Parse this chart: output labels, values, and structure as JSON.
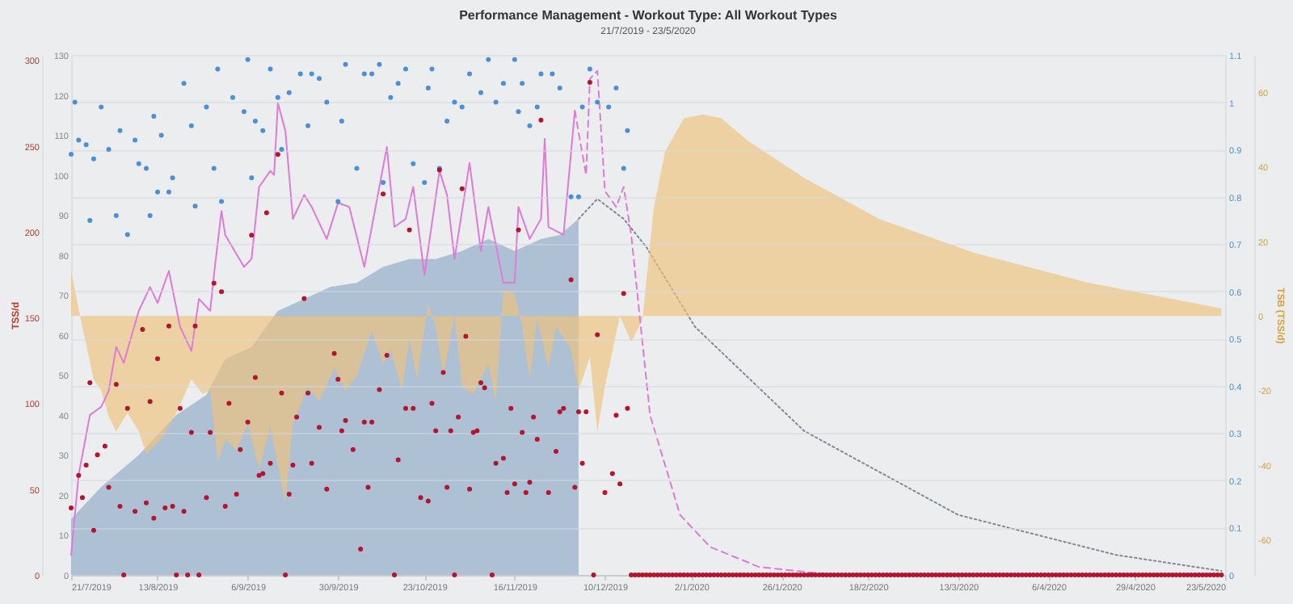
{
  "chart_data": [
    {
      "type": "line",
      "title": "Performance Management - Workout Type: All Workout Types",
      "subtitle": "21/7/2019 - 23/5/2020",
      "y2label": "TSB (TSS/d)",
      "xlim": [
        "2019-07-21",
        "2020-05-23"
      ],
      "xticks": [
        {
          "value": "2019-07-21",
          "label": "21/7/2019"
        },
        {
          "value": "2019-08-13",
          "label": "13/8/2019"
        },
        {
          "value": "2019-09-06",
          "label": "6/9/2019"
        },
        {
          "value": "2019-09-30",
          "label": "30/9/2019"
        },
        {
          "value": "2019-10-23",
          "label": "23/10/2019"
        },
        {
          "value": "2019-11-16",
          "label": "16/11/2019"
        },
        {
          "value": "2019-12-10",
          "label": "10/12/2019"
        },
        {
          "value": "2020-01-02",
          "label": "2/1/2020"
        },
        {
          "value": "2020-01-26",
          "label": "26/1/2020"
        },
        {
          "value": "2020-02-18",
          "label": "18/2/2020"
        },
        {
          "value": "2020-03-13",
          "label": "13/3/2020"
        },
        {
          "value": "2020-04-06",
          "label": "6/4/2020"
        },
        {
          "value": "2020-04-29",
          "label": "29/4/2020"
        },
        {
          "value": "2020-05-23",
          "label": "23/5/2020"
        }
      ],
      "ylim": [
        0,
        130
      ],
      "yticks": [
        0,
        10,
        20,
        30,
        40,
        50,
        60,
        70,
        80,
        90,
        100,
        110,
        120,
        130
      ],
      "y2lim": [
        -69.5,
        70
      ],
      "y2ticks": [
        -60,
        -40,
        -20,
        0,
        20,
        40,
        60
      ],
      "series": [
        {
          "type": "area",
          "color": "#8ea9c4",
          "x": [
            "2019-07-21",
            "2019-07-29",
            "2019-08-08",
            "2019-08-18",
            "2019-08-26",
            "2019-08-31",
            "2019-09-07",
            "2019-09-14",
            "2019-09-21",
            "2019-09-28",
            "2019-10-05",
            "2019-10-12",
            "2019-10-19",
            "2019-10-26",
            "2019-11-02",
            "2019-11-09",
            "2019-11-16",
            "2019-11-23",
            "2019-11-28",
            "2019-12-03"
          ],
          "values": [
            14,
            22,
            30,
            40,
            45,
            54,
            57,
            66,
            69,
            72,
            73,
            77,
            79,
            79,
            81,
            84,
            81,
            84,
            85,
            89
          ]
        },
        {
          "color": "#808890",
          "line_style": "dotted",
          "x": [
            "2019-12-03",
            "2019-12-08",
            "2019-12-15",
            "2019-12-21",
            "2020-01-03",
            "2020-02-01",
            "2020-03-13",
            "2020-04-24",
            "2020-05-22"
          ],
          "values": [
            89,
            94,
            89,
            82,
            62,
            36,
            15,
            5,
            1
          ]
        },
        {
          "type": "area",
          "axis": "y2",
          "color": "#f0c27a",
          "x": [
            "2019-07-21",
            "2019-07-24",
            "2019-07-27",
            "2019-07-29",
            "2019-07-31",
            "2019-08-02",
            "2019-08-05",
            "2019-08-08",
            "2019-08-10",
            "2019-08-14",
            "2019-08-18",
            "2019-08-22",
            "2019-08-25",
            "2019-08-27",
            "2019-08-29",
            "2019-08-31",
            "2019-09-03",
            "2019-09-06",
            "2019-09-09",
            "2019-09-12",
            "2019-09-14",
            "2019-09-16",
            "2019-09-18",
            "2019-09-22",
            "2019-09-25",
            "2019-09-29",
            "2019-10-02",
            "2019-10-05",
            "2019-10-09",
            "2019-10-12",
            "2019-10-14",
            "2019-10-17",
            "2019-10-19",
            "2019-10-21",
            "2019-10-24",
            "2019-10-26",
            "2019-10-28",
            "2019-10-31",
            "2019-11-02",
            "2019-11-05",
            "2019-11-09",
            "2019-11-11",
            "2019-11-13",
            "2019-11-16",
            "2019-11-18",
            "2019-11-20",
            "2019-11-22",
            "2019-11-25",
            "2019-11-27",
            "2019-12-01",
            "2019-12-03",
            "2019-12-06",
            "2019-12-08",
            "2019-12-10",
            "2019-12-14",
            "2019-12-17",
            "2019-12-20",
            "2019-12-23",
            "2019-12-26",
            "2019-12-31",
            "2020-01-05",
            "2020-01-10",
            "2020-01-17",
            "2020-02-01",
            "2020-02-21",
            "2020-03-17",
            "2020-04-16",
            "2020-05-22"
          ],
          "values": [
            12,
            -3,
            -17,
            -20,
            -27,
            -31,
            -26,
            -31,
            -37,
            -33,
            -26,
            -17,
            -21,
            -20,
            -39,
            -33,
            -36,
            -29,
            -41,
            -30,
            -40,
            -50,
            -29,
            -19,
            -23,
            -14,
            -20,
            -16,
            -4,
            -13,
            -9,
            -20,
            -6,
            -17,
            3,
            -3,
            -16,
            0,
            -19,
            -21,
            -13,
            -23,
            7,
            6,
            -3,
            -17,
            -1,
            -14,
            -3,
            -9,
            -20,
            -11,
            -31,
            -19,
            0,
            -7,
            -1,
            29,
            44,
            53,
            54,
            53,
            47,
            37,
            26,
            17,
            9,
            2
          ]
        },
        {
          "color": "#e07ad8",
          "x": [
            "2019-07-21",
            "2019-07-23",
            "2019-07-26",
            "2019-07-29",
            "2019-07-31",
            "2019-08-02",
            "2019-08-04",
            "2019-08-08",
            "2019-08-11",
            "2019-08-13",
            "2019-08-16",
            "2019-08-19",
            "2019-08-22",
            "2019-08-24",
            "2019-08-27",
            "2019-08-28",
            "2019-08-30",
            "2019-08-31",
            "2019-09-05",
            "2019-09-07",
            "2019-09-09",
            "2019-09-12",
            "2019-09-13",
            "2019-09-14",
            "2019-09-16",
            "2019-09-18",
            "2019-09-21",
            "2019-09-23",
            "2019-09-27",
            "2019-09-30",
            "2019-10-03",
            "2019-10-07",
            "2019-10-13",
            "2019-10-15",
            "2019-10-18",
            "2019-10-20",
            "2019-10-23",
            "2019-10-27",
            "2019-10-29",
            "2019-10-31",
            "2019-11-04",
            "2019-11-07",
            "2019-11-09",
            "2019-11-13",
            "2019-11-16",
            "2019-11-17",
            "2019-11-20",
            "2019-11-23",
            "2019-11-24",
            "2019-11-25",
            "2019-11-29",
            "2019-12-02"
          ],
          "values": [
            5,
            25,
            40,
            42,
            46,
            57,
            53,
            66,
            72,
            68,
            76,
            62,
            56,
            69,
            66,
            75,
            91,
            85,
            77,
            79,
            97,
            101,
            100,
            118,
            111,
            89,
            95,
            92,
            84,
            93,
            92,
            77,
            107,
            87,
            89,
            97,
            75,
            101,
            95,
            79,
            103,
            81,
            92,
            73,
            73,
            92,
            84,
            89,
            109,
            87,
            85,
            116
          ]
        },
        {
          "color": "#e07ad8",
          "line_style": "dashed",
          "x": [
            "2019-12-02",
            "2019-12-05",
            "2019-12-06",
            "2019-12-08",
            "2019-12-10",
            "2019-12-13",
            "2019-12-15",
            "2019-12-17",
            "2019-12-22",
            "2019-12-30",
            "2020-01-07",
            "2020-01-20",
            "2020-02-09",
            "2020-05-22"
          ],
          "values": [
            116,
            100,
            124,
            126,
            96,
            92,
            97,
            85,
            40,
            15,
            7,
            2,
            0,
            0
          ]
        }
      ]
    },
    {
      "type": "scatter",
      "marker": "circle",
      "y2label": "TSS/d",
      "tick_labels": "y",
      "grid": "y",
      "xlim": [
        "2019-07-21",
        "2020-05-23"
      ],
      "xticks": [
        {
          "value": "2019-07-21",
          "label": null
        },
        {
          "value": "2019-08-13",
          "label": null
        },
        {
          "value": "2019-09-06",
          "label": null
        },
        {
          "value": "2019-09-30",
          "label": null
        },
        {
          "value": "2019-10-23",
          "label": null
        },
        {
          "value": "2019-11-16",
          "label": null
        },
        {
          "value": "2019-12-10",
          "label": null
        },
        {
          "value": "2020-01-02",
          "label": null
        },
        {
          "value": "2020-01-26",
          "label": null
        },
        {
          "value": "2020-02-18",
          "label": null
        },
        {
          "value": "2020-03-13",
          "label": null
        },
        {
          "value": "2020-04-06",
          "label": null
        },
        {
          "value": "2020-04-29",
          "label": null
        },
        {
          "value": "2020-05-23",
          "label": null
        }
      ],
      "ylim": [
        0,
        1.1
      ],
      "yticks": [
        0,
        0.1,
        0.2,
        0.3,
        0.4,
        0.5,
        0.6,
        0.7,
        0.8,
        0.9,
        1.0,
        1.1
      ],
      "y2lim": [
        0,
        303
      ],
      "y2ticks": [
        0,
        50,
        100,
        150,
        200,
        250,
        300
      ],
      "series": [
        {
          "color": "#4a90d9",
          "x": [
            "2019-07-21",
            "2019-07-22",
            "2019-07-23",
            "2019-07-25",
            "2019-07-26",
            "2019-07-27",
            "2019-07-29",
            "2019-07-31",
            "2019-08-02",
            "2019-08-03",
            "2019-08-05",
            "2019-08-07",
            "2019-08-08",
            "2019-08-10",
            "2019-08-11",
            "2019-08-12",
            "2019-08-13",
            "2019-08-14",
            "2019-08-16",
            "2019-08-17",
            "2019-08-20",
            "2019-08-22",
            "2019-08-23",
            "2019-08-26",
            "2019-08-28",
            "2019-08-29",
            "2019-08-30",
            "2019-09-02",
            "2019-09-05",
            "2019-09-06",
            "2019-09-07",
            "2019-09-08",
            "2019-09-10",
            "2019-09-12",
            "2019-09-14",
            "2019-09-15",
            "2019-09-17",
            "2019-09-20",
            "2019-09-22",
            "2019-09-23",
            "2019-09-25",
            "2019-09-27",
            "2019-09-30",
            "2019-10-01",
            "2019-10-02",
            "2019-10-05",
            "2019-10-07",
            "2019-10-09",
            "2019-10-11",
            "2019-10-12",
            "2019-10-14",
            "2019-10-16",
            "2019-10-18",
            "2019-10-20",
            "2019-10-23",
            "2019-10-24",
            "2019-10-25",
            "2019-10-27",
            "2019-10-29",
            "2019-10-31",
            "2019-11-02",
            "2019-11-04",
            "2019-11-07",
            "2019-11-09",
            "2019-11-11",
            "2019-11-13",
            "2019-11-16",
            "2019-11-17",
            "2019-11-18",
            "2019-11-20",
            "2019-11-22",
            "2019-11-23",
            "2019-11-26",
            "2019-11-28",
            "2019-12-01",
            "2019-12-03",
            "2019-12-04",
            "2019-12-06",
            "2019-12-08",
            "2019-12-11",
            "2019-12-13",
            "2019-12-15",
            "2019-12-16"
          ],
          "values": [
            0.89,
            1.0,
            0.92,
            0.91,
            0.75,
            0.88,
            0.99,
            0.9,
            0.76,
            0.94,
            0.72,
            0.92,
            0.87,
            0.86,
            0.76,
            0.97,
            0.81,
            0.93,
            0.81,
            0.84,
            1.04,
            0.95,
            0.78,
            0.99,
            0.86,
            1.07,
            0.79,
            1.01,
            0.98,
            1.09,
            0.84,
            0.96,
            0.94,
            1.07,
            1.01,
            0.9,
            1.02,
            1.06,
            0.95,
            1.06,
            1.05,
            1.0,
            0.79,
            0.96,
            1.08,
            0.86,
            1.06,
            1.06,
            1.08,
            0.83,
            1.01,
            1.04,
            1.07,
            0.87,
            0.83,
            1.03,
            1.07,
            0.86,
            0.96,
            1.0,
            0.99,
            1.06,
            1.02,
            1.09,
            1.0,
            1.04,
            1.09,
            0.98,
            1.04,
            0.95,
            0.99,
            1.06,
            1.06,
            1.03,
            0.8,
            0.8,
            0.99,
            1.07,
            1.0,
            0.99,
            1.03,
            0.86,
            0.94
          ]
        },
        {
          "axis": "y2",
          "color": "#b3142e",
          "x": [
            "2019-07-21",
            "2019-07-23",
            "2019-07-24",
            "2019-07-25",
            "2019-07-26",
            "2019-07-27",
            "2019-07-28",
            "2019-07-30",
            "2019-07-31",
            "2019-08-02",
            "2019-08-03",
            "2019-08-04",
            "2019-08-05",
            "2019-08-07",
            "2019-08-09",
            "2019-08-10",
            "2019-08-11",
            "2019-08-12",
            "2019-08-13",
            "2019-08-15",
            "2019-08-16",
            "2019-08-17",
            "2019-08-18",
            "2019-08-19",
            "2019-08-20",
            "2019-08-21",
            "2019-08-22",
            "2019-08-23",
            "2019-08-24",
            "2019-08-26",
            "2019-08-27",
            "2019-08-28",
            "2019-08-30",
            "2019-08-31",
            "2019-09-01",
            "2019-09-03",
            "2019-09-04",
            "2019-09-06",
            "2019-09-07",
            "2019-09-08",
            "2019-09-09",
            "2019-09-10",
            "2019-09-11",
            "2019-09-12",
            "2019-09-14",
            "2019-09-15",
            "2019-09-16",
            "2019-09-17",
            "2019-09-18",
            "2019-09-19",
            "2019-09-21",
            "2019-09-22",
            "2019-09-23",
            "2019-09-25",
            "2019-09-27",
            "2019-09-29",
            "2019-09-30",
            "2019-10-01",
            "2019-10-02",
            "2019-10-04",
            "2019-10-06",
            "2019-10-07",
            "2019-10-08",
            "2019-10-09",
            "2019-10-11",
            "2019-10-12",
            "2019-10-13",
            "2019-10-15",
            "2019-10-16",
            "2019-10-18",
            "2019-10-19",
            "2019-10-20",
            "2019-10-22",
            "2019-10-24",
            "2019-10-25",
            "2019-10-26",
            "2019-10-27",
            "2019-10-28",
            "2019-10-29",
            "2019-10-30",
            "2019-10-31",
            "2019-11-01",
            "2019-11-02",
            "2019-11-03",
            "2019-11-04",
            "2019-11-05",
            "2019-11-06",
            "2019-11-07",
            "2019-11-08",
            "2019-11-10",
            "2019-11-11",
            "2019-11-13",
            "2019-11-14",
            "2019-11-15",
            "2019-11-16",
            "2019-11-17",
            "2019-11-18",
            "2019-11-19",
            "2019-11-20",
            "2019-11-21",
            "2019-11-22",
            "2019-11-23",
            "2019-11-25",
            "2019-11-27",
            "2019-11-28",
            "2019-11-29",
            "2019-12-01",
            "2019-12-02",
            "2019-12-03",
            "2019-12-04",
            "2019-12-05",
            "2019-12-06",
            "2019-12-07",
            "2019-12-08",
            "2019-12-10",
            "2019-12-12",
            "2019-12-13",
            "2019-12-14",
            "2019-12-15",
            "2019-12-16",
            "2019-12-17",
            "2019-12-18",
            "2019-12-19",
            "2019-12-20",
            "2019-12-21",
            "2019-12-22",
            "2019-12-23",
            "2019-12-24",
            "2019-12-25",
            "2019-12-26",
            "2019-12-27",
            "2019-12-28",
            "2019-12-29",
            "2019-12-30",
            "2019-12-31",
            "2020-01-01",
            "2020-01-02",
            "2020-01-03",
            "2020-01-04",
            "2020-01-05",
            "2020-01-06",
            "2020-01-07",
            "2020-01-08",
            "2020-01-09",
            "2020-01-10",
            "2020-01-11",
            "2020-01-12",
            "2020-01-13",
            "2020-01-14",
            "2020-01-15",
            "2020-01-16",
            "2020-01-17",
            "2020-01-18",
            "2020-01-19",
            "2020-01-20",
            "2020-01-21",
            "2020-01-22",
            "2020-01-23",
            "2020-01-24",
            "2020-01-25",
            "2020-01-26",
            "2020-01-27",
            "2020-01-28",
            "2020-01-29",
            "2020-01-30",
            "2020-01-31",
            "2020-02-01",
            "2020-02-02",
            "2020-02-03",
            "2020-02-04",
            "2020-02-05",
            "2020-02-06",
            "2020-02-07",
            "2020-02-08",
            "2020-02-09",
            "2020-02-10",
            "2020-02-11",
            "2020-02-12",
            "2020-02-13",
            "2020-02-14",
            "2020-02-15",
            "2020-02-16",
            "2020-02-17",
            "2020-02-18",
            "2020-02-19",
            "2020-02-20",
            "2020-02-21",
            "2020-02-22",
            "2020-02-23",
            "2020-02-24",
            "2020-02-25",
            "2020-02-26",
            "2020-02-27",
            "2020-02-28",
            "2020-02-29",
            "2020-03-01",
            "2020-03-02",
            "2020-03-03",
            "2020-03-04",
            "2020-03-05",
            "2020-03-06",
            "2020-03-07",
            "2020-03-08",
            "2020-03-09",
            "2020-03-10",
            "2020-03-11",
            "2020-03-12",
            "2020-03-13",
            "2020-03-14",
            "2020-03-15",
            "2020-03-16",
            "2020-03-17",
            "2020-03-18",
            "2020-03-19",
            "2020-03-20",
            "2020-03-21",
            "2020-03-22",
            "2020-03-23",
            "2020-03-24",
            "2020-03-25",
            "2020-03-26",
            "2020-03-27",
            "2020-03-28",
            "2020-03-29",
            "2020-03-30",
            "2020-03-31",
            "2020-04-01",
            "2020-04-02",
            "2020-04-03",
            "2020-04-04",
            "2020-04-05",
            "2020-04-06",
            "2020-04-07",
            "2020-04-08",
            "2020-04-09",
            "2020-04-10",
            "2020-04-11",
            "2020-04-12",
            "2020-04-13",
            "2020-04-14",
            "2020-04-15",
            "2020-04-16",
            "2020-04-17",
            "2020-04-18",
            "2020-04-19",
            "2020-04-20",
            "2020-04-21",
            "2020-04-22",
            "2020-04-23",
            "2020-04-24",
            "2020-04-25",
            "2020-04-26",
            "2020-04-27",
            "2020-04-28",
            "2020-04-29",
            "2020-04-30",
            "2020-05-01",
            "2020-05-02",
            "2020-05-03",
            "2020-05-04",
            "2020-05-05",
            "2020-05-06",
            "2020-05-07",
            "2020-05-08",
            "2020-05-09",
            "2020-05-10",
            "2020-05-11",
            "2020-05-12",
            "2020-05-13",
            "2020-05-14",
            "2020-05-15",
            "2020-05-16",
            "2020-05-17",
            "2020-05-18",
            "2020-05-19",
            "2020-05-20",
            "2020-05-21",
            "2020-05-22"
          ],
          "values": [
            39,
            58,
            45,
            64,
            112,
            26,
            70,
            75,
            51,
            111,
            40,
            0,
            97,
            37,
            143,
            42,
            101,
            33,
            126,
            39,
            145,
            40,
            0,
            97,
            37,
            0,
            83,
            145,
            0,
            45,
            83,
            170,
            165,
            40,
            100,
            47,
            73,
            89,
            198,
            115,
            58,
            59,
            211,
            65,
            245,
            106,
            0,
            47,
            64,
            92,
            161,
            106,
            65,
            86,
            50,
            129,
            114,
            84,
            90,
            73,
            15,
            89,
            51,
            89,
            108,
            222,
            128,
            0,
            67,
            97,
            201,
            97,
            45,
            43,
            100,
            84,
            236,
            118,
            51,
            84,
            0,
            92,
            225,
            139,
            50,
            83,
            84,
            112,
            109,
            0,
            65,
            68,
            48,
            97,
            53,
            201,
            83,
            48,
            54,
            92,
            79,
            265,
            48,
            72,
            95,
            97,
            172,
            51,
            95,
            65,
            95,
            287,
            0,
            140,
            48,
            59,
            93,
            53,
            164,
            97,
            0,
            0,
            0,
            0,
            0,
            0,
            0,
            0,
            0,
            0,
            0,
            0,
            0,
            0,
            0,
            0,
            0,
            0,
            0,
            0,
            0,
            0,
            0,
            0,
            0,
            0,
            0,
            0,
            0,
            0,
            0,
            0,
            0,
            0,
            0,
            0,
            0,
            0,
            0,
            0,
            0,
            0,
            0,
            0,
            0,
            0,
            0,
            0,
            0,
            0,
            0,
            0,
            0,
            0,
            0,
            0,
            0,
            0,
            0,
            0,
            0,
            0,
            0,
            0,
            0,
            0,
            0,
            0,
            0,
            0,
            0,
            0,
            0,
            0,
            0,
            0,
            0,
            0,
            0,
            0,
            0,
            0,
            0,
            0,
            0,
            0,
            0,
            0,
            0,
            0,
            0,
            0,
            0,
            0,
            0,
            0,
            0,
            0,
            0,
            0,
            0,
            0,
            0,
            0,
            0,
            0,
            0,
            0,
            0,
            0,
            0,
            0,
            0,
            0,
            0,
            0,
            0,
            0,
            0,
            0,
            0,
            0,
            0,
            0,
            0,
            0,
            0,
            0,
            0,
            0,
            0,
            0,
            0,
            0,
            0,
            0,
            0,
            0,
            0,
            0,
            0,
            0,
            0,
            0,
            0,
            0,
            0,
            0,
            0,
            0,
            0,
            0,
            0,
            0,
            0,
            0,
            0,
            0
          ]
        }
      ]
    }
  ]
}
